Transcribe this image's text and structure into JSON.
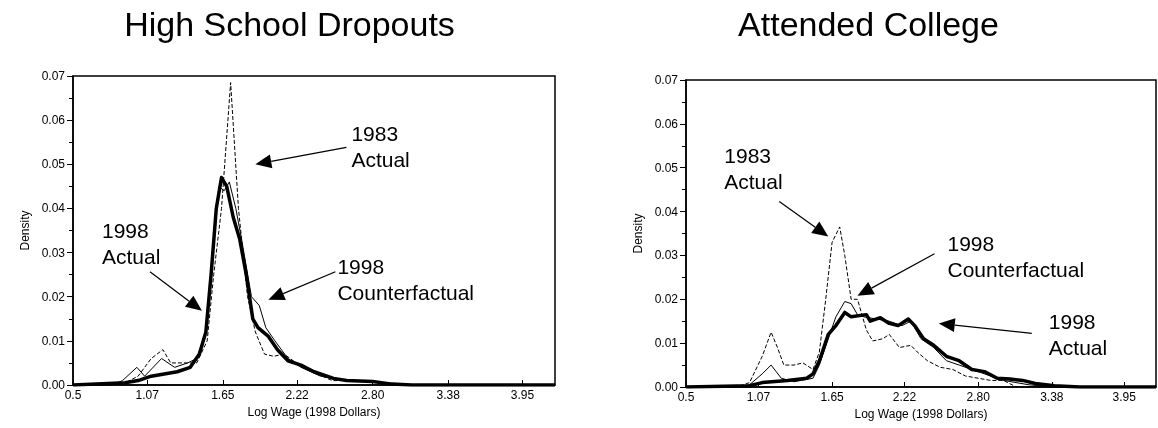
{
  "chart_data": [
    {
      "type": "line",
      "title": "High School Dropouts",
      "xlabel": "Log Wage (1998 Dollars)",
      "ylabel": "Density",
      "xlim": [
        0.5,
        4.2
      ],
      "ylim": [
        0,
        0.07
      ],
      "xticks": [
        0.5,
        1.07,
        1.65,
        2.22,
        {
          "value": 2.8,
          "label": "2.80"
        },
        3.38,
        3.95
      ],
      "yticks": [
        {
          "value": 0,
          "label": "0.00"
        },
        0.01,
        0.02,
        0.03,
        0.04,
        0.05,
        0.06,
        0.07
      ],
      "grid": false,
      "marker": "none",
      "series": [
        {
          "color": "#000000",
          "line_style": "dashed",
          "x": [
            0.5,
            0.9,
            1.0,
            1.1,
            1.19,
            1.25,
            1.35,
            1.45,
            1.53,
            1.58,
            1.64,
            1.71,
            1.77,
            1.84,
            1.9,
            1.97,
            2.04,
            2.12,
            2.26,
            2.49,
            2.77,
            3.0,
            4.2
          ],
          "values": [
            0,
            0.0005,
            0.002,
            0.006,
            0.008,
            0.005,
            0.005,
            0.005,
            0.01,
            0.025,
            0.04,
            0.0685,
            0.04,
            0.02,
            0.012,
            0.007,
            0.0065,
            0.007,
            0.004,
            0.001,
            0.001,
            0,
            0
          ]
        },
        {
          "color": "#000000",
          "line_style": "solid",
          "x": [
            0.5,
            0.8,
            0.88,
            0.99,
            1.05,
            1.18,
            1.28,
            1.38,
            1.45,
            1.52,
            1.57,
            1.62,
            1.66,
            1.7,
            1.75,
            1.8,
            1.87,
            1.93,
            1.98,
            2.05,
            2.15,
            2.25,
            2.4,
            2.6,
            2.9,
            3.1,
            4.2
          ],
          "values": [
            0,
            0,
            0.001,
            0.004,
            0.002,
            0.006,
            0.004,
            0.005,
            0.006,
            0.012,
            0.03,
            0.045,
            0.044,
            0.046,
            0.04,
            0.032,
            0.02,
            0.018,
            0.013,
            0.01,
            0.006,
            0.004,
            0.002,
            0.001,
            0.0005,
            0,
            0
          ]
        },
        {
          "color": "#000000",
          "line_style": "solid",
          "x": [
            0.5,
            0.9,
            1.0,
            1.1,
            1.3,
            1.4,
            1.47,
            1.52,
            1.56,
            1.6,
            1.64,
            1.68,
            1.73,
            1.78,
            1.83,
            1.88,
            1.92,
            2.0,
            2.07,
            2.15,
            2.25,
            2.35,
            2.5,
            2.6,
            2.8,
            2.95,
            3.1,
            4.2
          ],
          "values": [
            0,
            0.0005,
            0.001,
            0.002,
            0.003,
            0.004,
            0.007,
            0.012,
            0.025,
            0.04,
            0.047,
            0.045,
            0.038,
            0.033,
            0.025,
            0.015,
            0.013,
            0.011,
            0.008,
            0.0055,
            0.0045,
            0.003,
            0.0015,
            0.001,
            0.0008,
            0.0002,
            0,
            0
          ]
        }
      ],
      "annotations": [
        "1983 Actual",
        "1998 Actual",
        "1998 Counterfactual"
      ]
    },
    {
      "type": "line",
      "title": "Attended College",
      "xlabel": "Log Wage (1998 Dollars)",
      "ylabel": "Density",
      "xlim": [
        0.5,
        4.2
      ],
      "ylim": [
        0,
        0.07
      ],
      "xticks": [
        0.5,
        1.07,
        1.65,
        2.22,
        {
          "value": 2.8,
          "label": "2.80"
        },
        3.38,
        3.95
      ],
      "yticks": [
        {
          "value": 0,
          "label": "0.00"
        },
        0.01,
        0.02,
        0.03,
        0.04,
        0.05,
        0.06,
        0.07
      ],
      "grid": false,
      "marker": "none",
      "series": [
        {
          "color": "#000000",
          "line_style": "dashed",
          "x": [
            0.5,
            0.9,
            1.0,
            1.1,
            1.17,
            1.22,
            1.27,
            1.35,
            1.42,
            1.5,
            1.55,
            1.6,
            1.65,
            1.71,
            1.75,
            1.8,
            1.85,
            1.92,
            1.97,
            2.05,
            2.1,
            2.18,
            2.27,
            2.32,
            2.4,
            2.5,
            2.6,
            2.7,
            2.9,
            3.0,
            3.1,
            4.2
          ],
          "values": [
            0,
            0,
            0.001,
            0.007,
            0.0125,
            0.009,
            0.005,
            0.005,
            0.0055,
            0.004,
            0.008,
            0.02,
            0.033,
            0.0365,
            0.03,
            0.02,
            0.02,
            0.013,
            0.0105,
            0.011,
            0.012,
            0.009,
            0.0095,
            0.008,
            0.006,
            0.0045,
            0.004,
            0.0025,
            0.0015,
            0.0015,
            0,
            0
          ]
        },
        {
          "color": "#000000",
          "line_style": "solid",
          "x": [
            0.5,
            0.9,
            1.0,
            1.1,
            1.17,
            1.25,
            1.35,
            1.5,
            1.55,
            1.62,
            1.68,
            1.75,
            1.8,
            1.85,
            1.9,
            2.0,
            2.1,
            2.2,
            2.27,
            2.35,
            2.45,
            2.55,
            2.65,
            2.75,
            2.85,
            3.0,
            3.2,
            3.4,
            4.2
          ],
          "values": [
            0,
            0,
            0.0005,
            0.003,
            0.005,
            0.002,
            0.0012,
            0.002,
            0.005,
            0.011,
            0.016,
            0.0195,
            0.019,
            0.0165,
            0.016,
            0.0155,
            0.015,
            0.014,
            0.015,
            0.011,
            0.009,
            0.006,
            0.005,
            0.004,
            0.003,
            0.0015,
            0.0005,
            0,
            0
          ]
        },
        {
          "color": "#000000",
          "line_style": "solid",
          "x": [
            0.5,
            1.0,
            1.1,
            1.3,
            1.45,
            1.5,
            1.55,
            1.62,
            1.68,
            1.75,
            1.8,
            1.92,
            1.95,
            2.03,
            2.1,
            2.17,
            2.25,
            2.3,
            2.37,
            2.45,
            2.55,
            2.65,
            2.75,
            2.85,
            2.95,
            3.05,
            3.15,
            3.25,
            3.4,
            3.6,
            4.2
          ],
          "values": [
            0,
            0.0003,
            0.001,
            0.0015,
            0.002,
            0.003,
            0.006,
            0.012,
            0.014,
            0.017,
            0.016,
            0.0165,
            0.015,
            0.0158,
            0.0145,
            0.014,
            0.0155,
            0.014,
            0.011,
            0.0095,
            0.007,
            0.006,
            0.004,
            0.0035,
            0.002,
            0.0018,
            0.0015,
            0.0008,
            0.0003,
            0,
            0
          ]
        }
      ],
      "annotations": [
        "1983 Actual",
        "1998 Counterfactual",
        "1998 Actual"
      ]
    }
  ]
}
